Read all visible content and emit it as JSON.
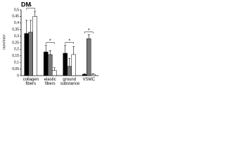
{
  "chart_data": {
    "type": "bar",
    "title": "DM",
    "y_label": "mm³/mm³",
    "categories": [
      "collagen fibers",
      "elastic fibers",
      "ground substance",
      "VSMC"
    ],
    "series": [
      {
        "color": "#000000",
        "values": [
          0.32,
          0.18,
          0.17,
          0.01
        ],
        "errors": [
          0.1,
          0.05,
          0.06,
          0.005
        ]
      },
      {
        "color": "#777777",
        "values": [
          0.33,
          0.16,
          0.07,
          0.28
        ],
        "errors": [
          0.09,
          0.03,
          0.06,
          0.03
        ]
      },
      {
        "color": "#ffffff",
        "values": [
          0.45,
          0.04,
          0.16,
          0.01
        ],
        "errors": [
          0.04,
          0.02,
          0.06,
          0.005
        ]
      }
    ],
    "significance": [
      "*",
      "*",
      "*",
      "*"
    ],
    "ylim": [
      0,
      0.5
    ],
    "yticks": [
      0,
      {
        "value": 0.05,
        "label": "0,05"
      },
      {
        "value": 0.1,
        "label": "0,1"
      },
      {
        "value": 0.15,
        "label": "0,15"
      },
      {
        "value": 0.2,
        "label": "0,2"
      },
      {
        "value": 0.25,
        "label": "0,25"
      },
      {
        "value": 0.3,
        "label": "0,3"
      },
      {
        "value": 0.35,
        "label": "0,35"
      },
      {
        "value": 0.4,
        "label": "0,4"
      },
      {
        "value": 0.45,
        "label": "0,45"
      },
      {
        "value": 0.5,
        "label": "0,5"
      }
    ]
  }
}
